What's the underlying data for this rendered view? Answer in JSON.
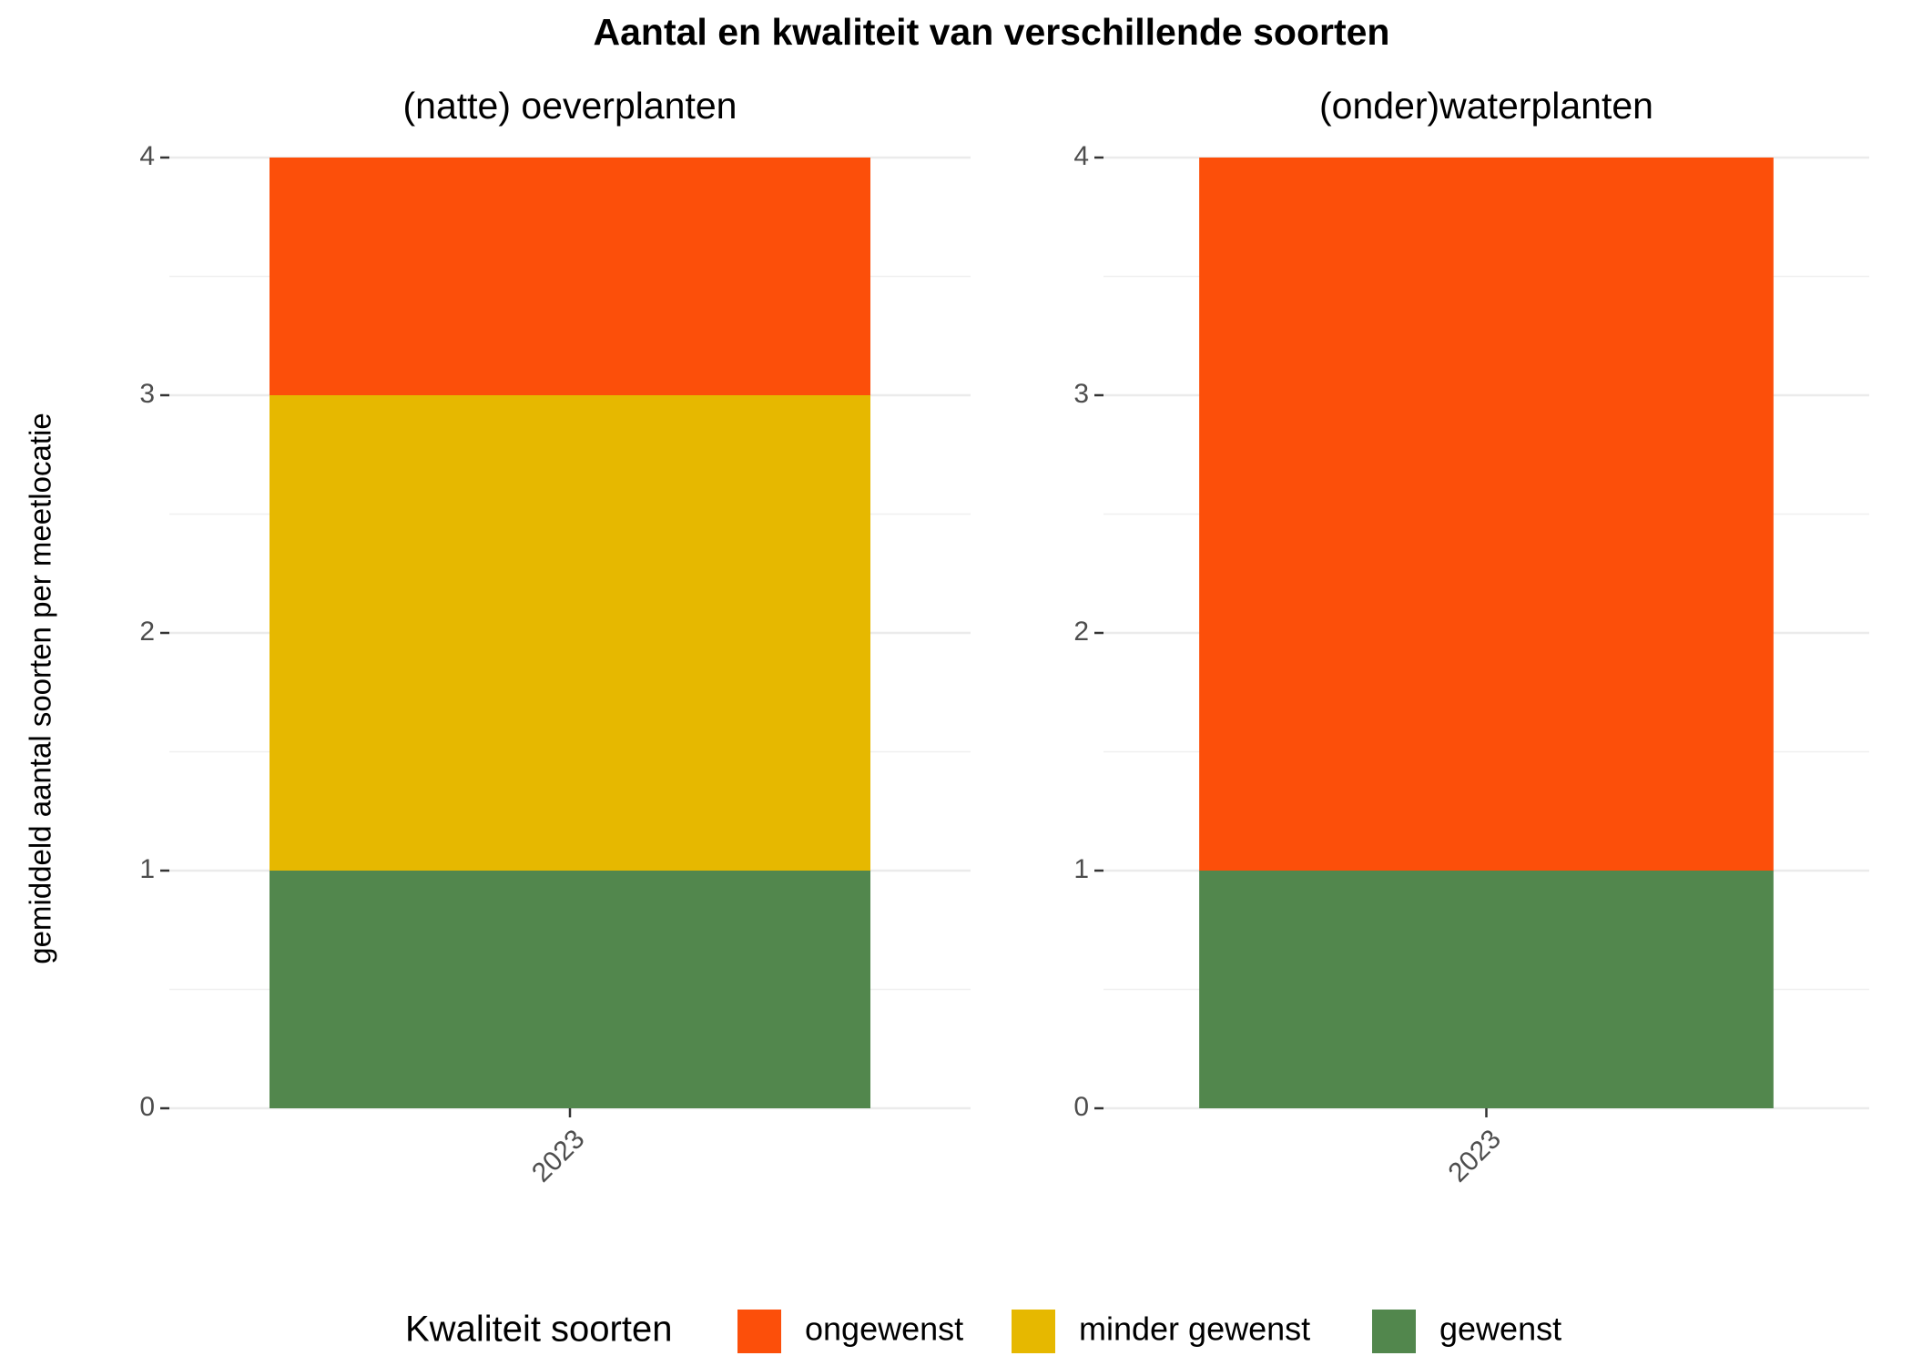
{
  "title": "Aantal en kwaliteit van verschillende soorten",
  "y_label": "gemiddeld aantal soorten per meetlocatie",
  "legend_title": "Kwaliteit soorten",
  "chart_data": [
    {
      "type": "bar",
      "stacked": true,
      "subtitle": "(natte) oeverplanten",
      "categories": [
        "2023"
      ],
      "series": [
        {
          "name": "ongewenst",
          "color": "#fc4f0a",
          "values": [
            1
          ]
        },
        {
          "name": "minder gewenst",
          "color": "#e6b800",
          "values": [
            2
          ]
        },
        {
          "name": "gewenst",
          "color": "#52874d",
          "values": [
            1
          ]
        }
      ],
      "ylim": [
        0,
        4
      ],
      "yticks": [
        0,
        1,
        2,
        3,
        4
      ],
      "grid": true
    },
    {
      "type": "bar",
      "stacked": true,
      "subtitle": "(onder)waterplanten",
      "categories": [
        "2023"
      ],
      "series": [
        {
          "name": "ongewenst",
          "color": "#fc4f0a",
          "values": [
            3
          ]
        },
        {
          "name": "minder gewenst",
          "color": "#e6b800",
          "values": [
            0
          ]
        },
        {
          "name": "gewenst",
          "color": "#52874d",
          "values": [
            1
          ]
        }
      ],
      "ylim": [
        0,
        4
      ],
      "yticks": [
        0,
        1,
        2,
        3,
        4
      ],
      "grid": true
    }
  ]
}
